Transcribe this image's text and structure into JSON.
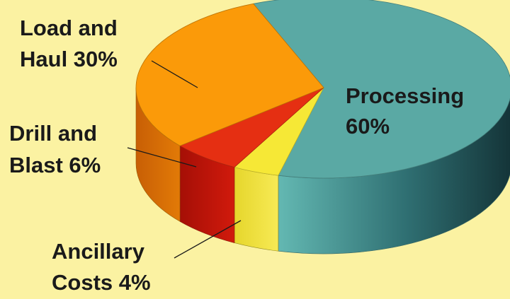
{
  "chart_data": {
    "type": "pie",
    "style": "3d",
    "slices": [
      {
        "label_lines": [
          "Processing",
          "60%"
        ],
        "value": 60,
        "color": "#5aa9a4"
      },
      {
        "label_lines": [
          "Ancillary",
          "Costs 4%"
        ],
        "value": 4,
        "color": "#f6e836"
      },
      {
        "label_lines": [
          "Drill and",
          "Blast 6%"
        ],
        "value": 6,
        "color": "#e52f12"
      },
      {
        "label_lines": [
          "Load and",
          "Haul 30%"
        ],
        "value": 30,
        "color": "#fb9a09"
      }
    ],
    "background": "#fbf2a2"
  }
}
